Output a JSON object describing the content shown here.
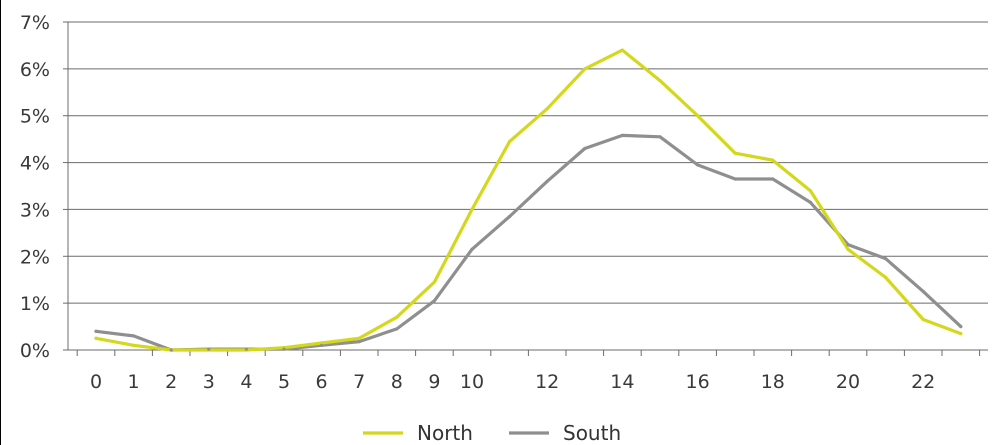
{
  "chart_data": {
    "type": "line",
    "title": "",
    "xlabel": "",
    "ylabel": "",
    "x": [
      0,
      1,
      2,
      3,
      4,
      5,
      6,
      7,
      8,
      9,
      10,
      11,
      12,
      13,
      14,
      15,
      16,
      17,
      18,
      19,
      20,
      21,
      22,
      23
    ],
    "x_tick_labels": [
      "0",
      "1",
      "2",
      "3",
      "4",
      "5",
      "6",
      "7",
      "8",
      "9",
      "10",
      "12",
      "14",
      "16",
      "18",
      "20",
      "22"
    ],
    "x_tick_values": [
      0,
      1,
      2,
      3,
      4,
      5,
      6,
      7,
      8,
      9,
      10,
      12,
      14,
      16,
      18,
      20,
      22
    ],
    "ylim": [
      0,
      7
    ],
    "y_ticks": [
      0,
      1,
      2,
      3,
      4,
      5,
      6,
      7
    ],
    "y_tick_labels": [
      "0%",
      "1%",
      "2%",
      "3%",
      "4%",
      "5%",
      "6%",
      "7%"
    ],
    "grid": "horizontal",
    "legend_position": "bottom-center",
    "series": [
      {
        "name": "North",
        "color": "#d4d81c",
        "values": [
          0.25,
          0.1,
          0.0,
          0.0,
          0.0,
          0.05,
          0.15,
          0.25,
          0.7,
          1.45,
          3.0,
          4.45,
          5.15,
          6.0,
          6.4,
          5.75,
          5.0,
          4.2,
          4.05,
          3.4,
          2.15,
          1.55,
          0.65,
          0.35
        ]
      },
      {
        "name": "South",
        "color": "#8f8f8f",
        "values": [
          0.4,
          0.3,
          0.0,
          0.02,
          0.02,
          0.02,
          0.1,
          0.18,
          0.45,
          1.05,
          2.15,
          2.85,
          3.6,
          4.3,
          4.58,
          4.55,
          3.95,
          3.65,
          3.65,
          3.15,
          2.25,
          1.95,
          1.25,
          0.5
        ]
      }
    ]
  }
}
